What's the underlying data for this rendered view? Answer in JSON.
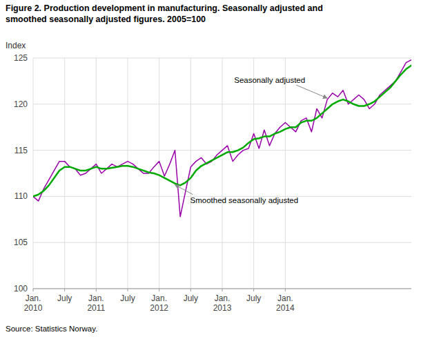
{
  "chart_data": {
    "type": "line",
    "title": "Figure 2. Production development in manufacturing. Seasonally adjusted and",
    "subtitle": "smoothed seasonally adjusted figures. 2005=100",
    "y_label": "Index",
    "source": "Source: Statistics Norway.",
    "categories": [
      "Jan.\n2010",
      null,
      null,
      null,
      null,
      null,
      "July",
      null,
      null,
      null,
      null,
      null,
      "Jan.\n2011",
      null,
      null,
      null,
      null,
      null,
      "July",
      null,
      null,
      null,
      null,
      null,
      "Jan.\n2012",
      null,
      null,
      null,
      null,
      null,
      "July",
      null,
      null,
      null,
      null,
      null,
      "Jan.\n2013",
      null,
      null,
      null,
      null,
      null,
      "July",
      null,
      null,
      null,
      null,
      null,
      "Jan.\n2014",
      null,
      null,
      null,
      null,
      null,
      null,
      null,
      null,
      null,
      null,
      null,
      null,
      null,
      null,
      null,
      null,
      null,
      null,
      null,
      null,
      null,
      null,
      null,
      null
    ],
    "ylim": [
      100,
      125
    ],
    "yticks": [
      100,
      105,
      110,
      115,
      120,
      125
    ],
    "grid": true,
    "series": [
      {
        "name": "Seasonally adjusted",
        "color": "#9900aa",
        "values": [
          110.0,
          109.5,
          110.8,
          111.8,
          112.8,
          113.8,
          113.8,
          113.2,
          113.0,
          112.3,
          112.5,
          113.0,
          113.5,
          112.5,
          113.0,
          113.5,
          113.2,
          113.5,
          113.8,
          113.5,
          113.0,
          112.5,
          112.5,
          113.2,
          113.8,
          112.2,
          113.5,
          115.0,
          107.8,
          110.5,
          113.2,
          113.8,
          114.2,
          113.5,
          113.8,
          114.5,
          115.0,
          115.5,
          113.8,
          114.5,
          115.0,
          115.2,
          116.8,
          115.2,
          117.2,
          115.5,
          116.8,
          117.5,
          118.0,
          117.5,
          117.0,
          118.2,
          118.5,
          117.0,
          119.5,
          118.5,
          120.5,
          121.2,
          120.8,
          121.5,
          120.0,
          120.5,
          121.0,
          120.5,
          119.5,
          120.0,
          121.0,
          121.5,
          122.0,
          122.5,
          123.5,
          124.5,
          124.8
        ]
      },
      {
        "name": "Smoothed seasonally adjusted",
        "color": "#00aa00",
        "values": [
          110.0,
          110.2,
          110.6,
          111.2,
          112.0,
          112.8,
          113.2,
          113.2,
          113.0,
          112.8,
          112.8,
          113.0,
          113.2,
          113.0,
          113.0,
          113.1,
          113.2,
          113.3,
          113.3,
          113.2,
          113.0,
          112.8,
          112.6,
          112.5,
          112.3,
          112.0,
          111.7,
          111.4,
          111.2,
          111.5,
          112.0,
          112.8,
          113.3,
          113.6,
          113.9,
          114.2,
          114.5,
          114.8,
          114.8,
          115.0,
          115.3,
          115.8,
          116.2,
          116.3,
          116.5,
          116.5,
          116.8,
          117.0,
          117.3,
          117.5,
          117.5,
          118.0,
          118.2,
          118.2,
          118.5,
          119.0,
          119.5,
          120.0,
          120.3,
          120.5,
          120.3,
          120.0,
          119.8,
          119.8,
          120.0,
          120.3,
          120.8,
          121.3,
          121.8,
          122.5,
          123.2,
          123.8,
          124.2
        ]
      }
    ]
  }
}
